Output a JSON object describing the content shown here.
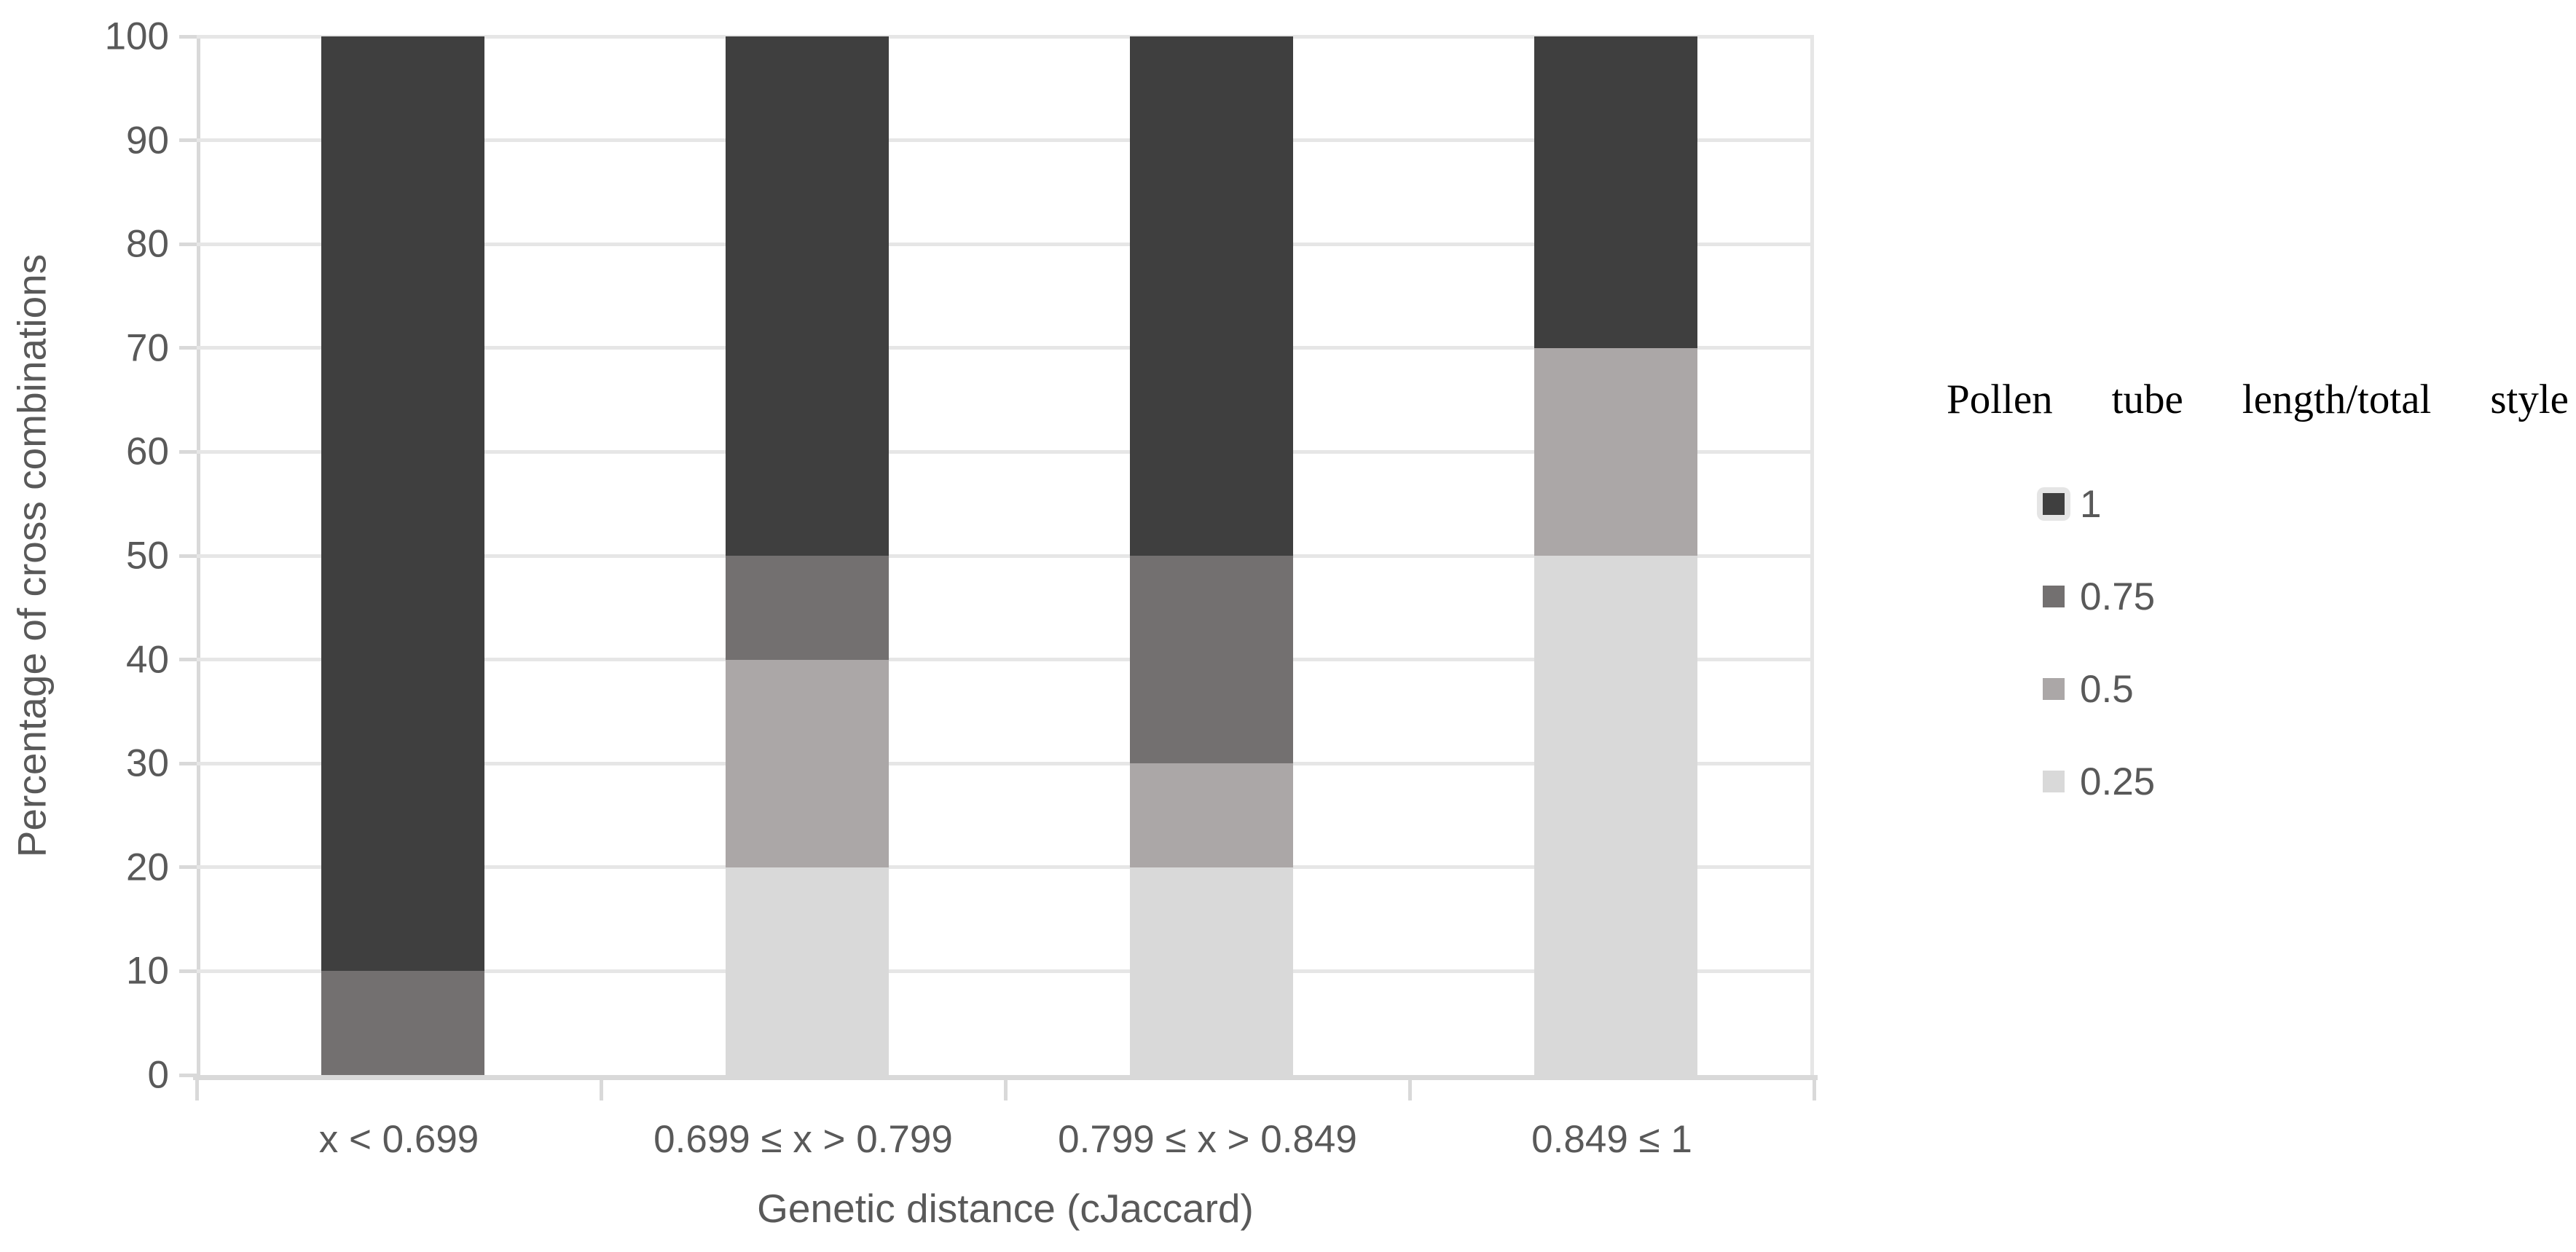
{
  "chart_data": {
    "type": "bar",
    "stacked": true,
    "orientation": "vertical",
    "xlabel": "Genetic distance (cJaccard)",
    "ylabel": "Percentage of cross combinations",
    "categories": [
      "x < 0.699",
      "0.699 ≤ x > 0.799",
      "0.799 ≤ x > 0.849",
      "0.849 ≤ 1"
    ],
    "series": [
      {
        "name": "0.25",
        "color": "#d9d9d9",
        "values": [
          0,
          20,
          20,
          50
        ]
      },
      {
        "name": "0.5",
        "color": "#aba7a7",
        "values": [
          0,
          20,
          10,
          20
        ]
      },
      {
        "name": "0.75",
        "color": "#737070",
        "values": [
          10,
          10,
          20,
          0
        ]
      },
      {
        "name": "1",
        "color": "#3f3f3f",
        "values": [
          90,
          50,
          50,
          30
        ]
      }
    ],
    "ylim": [
      0,
      100
    ],
    "yticks": [
      0,
      10,
      20,
      30,
      40,
      50,
      60,
      70,
      80,
      90,
      100
    ],
    "grid": true,
    "legend": {
      "title": "Pollen tube length/total style",
      "title_words": [
        "Pollen",
        "tube",
        "length/total",
        "style"
      ],
      "position": "right",
      "entries": [
        {
          "label": "1",
          "color": "#3f3f3f",
          "highlighted": true
        },
        {
          "label": "0.75",
          "color": "#737070",
          "highlighted": false
        },
        {
          "label": "0.5",
          "color": "#aba7a7",
          "highlighted": false
        },
        {
          "label": "0.25",
          "color": "#d9d9d9",
          "highlighted": false
        }
      ]
    },
    "colors": {
      "gridline": "#e6e6e6",
      "axis": "#d9d9d9",
      "tick_text": "#595959",
      "legend_title_text": "#000000",
      "legend_highlight": "#e5e5e5",
      "background": "#ffffff"
    }
  }
}
